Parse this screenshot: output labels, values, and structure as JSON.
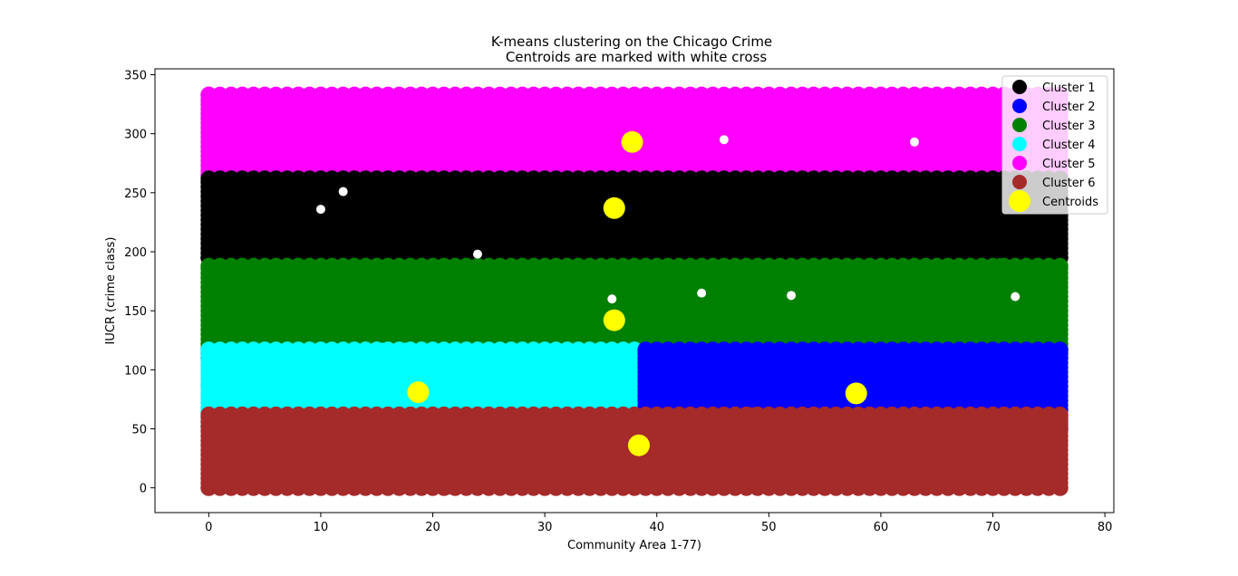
{
  "chart_data": {
    "type": "scatter",
    "title": "K-means clustering on the Chicago Crime",
    "subtitle": "Centroids are marked with white cross",
    "xlabel": "Community Area 1-77)",
    "ylabel": "IUCR (crime class)",
    "xlim": [
      -4.8,
      80.8
    ],
    "ylim": [
      -21,
      355
    ],
    "xticks": [
      0,
      10,
      20,
      30,
      40,
      50,
      60,
      70,
      80
    ],
    "yticks": [
      0,
      50,
      100,
      150,
      200,
      250,
      300,
      350
    ],
    "grid": false,
    "legend_position": "top-right",
    "series": [
      {
        "name": "Cluster 1",
        "color": "#000000",
        "x_range": [
          0,
          76
        ],
        "y_range": [
          195,
          262
        ]
      },
      {
        "name": "Cluster 2",
        "color": "#0000ff",
        "x_range": [
          39,
          76
        ],
        "y_range": [
          50,
          117
        ]
      },
      {
        "name": "Cluster 3",
        "color": "#008000",
        "x_range": [
          0,
          76
        ],
        "y_range": [
          110,
          188
        ]
      },
      {
        "name": "Cluster 4",
        "color": "#00ffff",
        "x_range": [
          0,
          38
        ],
        "y_range": [
          52,
          117
        ]
      },
      {
        "name": "Cluster 5",
        "color": "#ff00ff",
        "x_range": [
          0,
          76
        ],
        "y_range": [
          265,
          333
        ]
      },
      {
        "name": "Cluster 6",
        "color": "#a52a2a",
        "x_range": [
          0,
          76
        ],
        "y_range": [
          0,
          62
        ]
      }
    ],
    "centroids": {
      "name": "Centroids",
      "color": "#ffff00",
      "points": [
        {
          "x": 37.8,
          "y": 293
        },
        {
          "x": 36.2,
          "y": 237
        },
        {
          "x": 36.2,
          "y": 142
        },
        {
          "x": 18.7,
          "y": 81
        },
        {
          "x": 57.8,
          "y": 80
        },
        {
          "x": 38.4,
          "y": 36
        }
      ]
    }
  }
}
